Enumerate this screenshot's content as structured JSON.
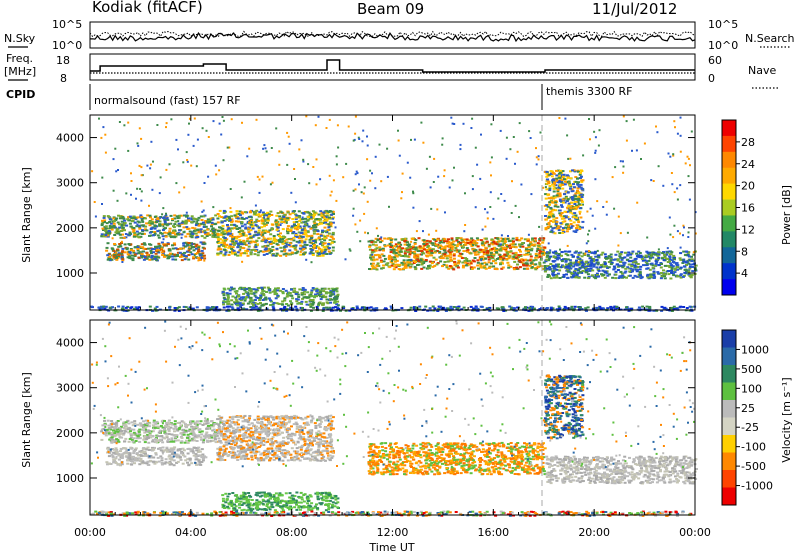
{
  "header": {
    "station": "Kodiak (fitACF)",
    "beam": "Beam 09",
    "date": "11/Jul/2012"
  },
  "summary_panels": {
    "nsky": {
      "label": "N.Sky",
      "ticks": [
        "10^5",
        "10^0"
      ]
    },
    "nsearch": {
      "label": "N.Search",
      "ticks": [
        "10^5",
        "10^0"
      ]
    },
    "freq": {
      "label_line1": "Freq.",
      "label_line2": "[MHz]",
      "ticks": [
        "18",
        "8"
      ]
    },
    "nave": {
      "label": "Nave",
      "ticks": [
        "60",
        "0"
      ]
    },
    "cpid": {
      "label": "CPID",
      "modes": [
        {
          "name": "normalsound (fast) 157 RF",
          "start_hour": 0,
          "end_hour": 18
        },
        {
          "name": "themis 3300 RF",
          "start_hour": 18,
          "end_hour": 24
        }
      ]
    }
  },
  "x_axis": {
    "title": "Time UT",
    "tick_labels": [
      "00:00",
      "04:00",
      "08:00",
      "12:00",
      "16:00",
      "20:00",
      "00:00"
    ],
    "range_hours": [
      0,
      24
    ]
  },
  "panels": [
    {
      "name": "power",
      "ylabel": "Slant Range [km]",
      "yticks": [
        "4000",
        "3000",
        "2000",
        "1000"
      ],
      "colorbar": {
        "label": "Power [dB]",
        "tick_labels": [
          "28",
          "24",
          "20",
          "16",
          "12",
          "8",
          "4"
        ],
        "colors": [
          "#ee0000",
          "#ff4400",
          "#ff8800",
          "#ffaa00",
          "#ffd800",
          "#aacc22",
          "#44aa44",
          "#228866",
          "#116699",
          "#0033cc",
          "#0000ee"
        ]
      }
    },
    {
      "name": "velocity",
      "ylabel": "Slant Range [km]",
      "yticks": [
        "4000",
        "3000",
        "2000",
        "1000"
      ],
      "colorbar": {
        "label": "Velocity [m s⁻¹]",
        "tick_labels": [
          "1000",
          "500",
          "100",
          "25",
          "-25",
          "-100",
          "-500",
          "-1000"
        ],
        "colors": [
          "#1a3ea8",
          "#2a6aa8",
          "#2d8860",
          "#5ec040",
          "#bbbbbb",
          "#d4d4c4",
          "#ffd000",
          "#ff8800",
          "#ff4400",
          "#ee0000"
        ]
      }
    }
  ],
  "chart_data": {
    "type": "heatmap",
    "title": "Kodiak (fitACF) Beam 09 11/Jul/2012",
    "xlabel": "Time UT",
    "ylabel": "Slant Range [km]",
    "x_range_hours": [
      0,
      24
    ],
    "y_range_km": [
      180,
      4500
    ],
    "scatter_regions": [
      {
        "t0": 0.4,
        "t1": 5.0,
        "r0": 1800,
        "r1": 2300,
        "power": "green/orange",
        "velocity": "grey"
      },
      {
        "t0": 0.6,
        "t1": 4.5,
        "r0": 1300,
        "r1": 1700,
        "power": "green/orange",
        "velocity": "grey"
      },
      {
        "t0": 5.0,
        "t1": 9.6,
        "r0": 1400,
        "r1": 2400,
        "power": "orange/green",
        "velocity": "grey"
      },
      {
        "t0": 5.2,
        "t1": 9.8,
        "r0": 300,
        "r1": 700,
        "power": "green",
        "velocity": "light-green"
      },
      {
        "t0": 11.0,
        "t1": 18.0,
        "r0": 1100,
        "r1": 1800,
        "power": "orange/red",
        "velocity": "orange"
      },
      {
        "t0": 18.0,
        "t1": 19.5,
        "r0": 1900,
        "r1": 3300,
        "power": "orange/green",
        "velocity": "blue/orange"
      },
      {
        "t0": 18.0,
        "t1": 24.0,
        "r0": 900,
        "r1": 1500,
        "power": "blue/green",
        "velocity": "grey"
      },
      {
        "t0": 0,
        "t1": 24,
        "r0": 180,
        "r1": 280,
        "power": "blue (ground scatter)",
        "velocity": "mixed"
      }
    ],
    "frequency_mhz_approx": [
      {
        "t0": 0,
        "t1": 24,
        "value": 11
      }
    ]
  }
}
